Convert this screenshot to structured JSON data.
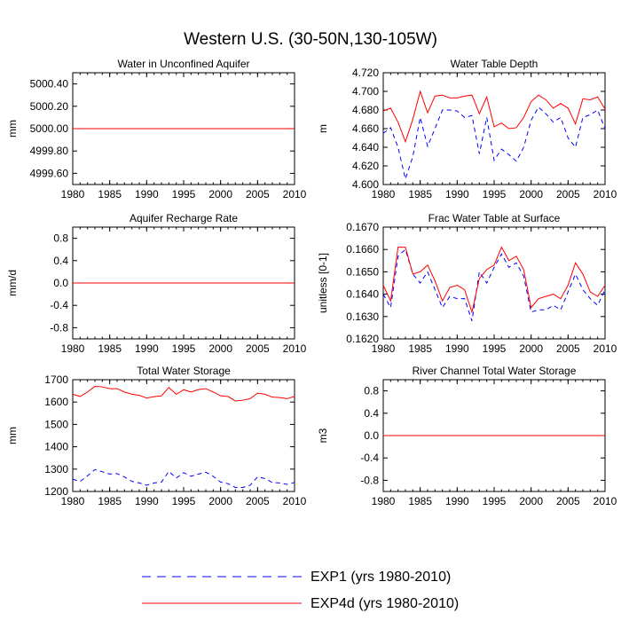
{
  "figure": {
    "title": "Western U.S. (30-50N,130-105W)",
    "legend": [
      {
        "label": "EXP1 (yrs 1980-2010)",
        "color": "#0000ff",
        "style": "dashed"
      },
      {
        "label": "EXP4d (yrs 1980-2010)",
        "color": "#ff0000",
        "style": "solid"
      }
    ]
  },
  "chart_data": [
    {
      "type": "line",
      "title": "Water in Unconfined Aquifer",
      "ylabel": "mm",
      "xlim": [
        1980,
        2010
      ],
      "ylim": [
        4999.5,
        5000.5
      ],
      "xticks": [
        1980,
        1985,
        1990,
        1995,
        2000,
        2005,
        2010
      ],
      "yticks": [
        4999.6,
        4999.8,
        5000.0,
        5000.2,
        5000.4
      ],
      "yticklabels": [
        "4999.60",
        "4999.80",
        "5000.00",
        "5000.20",
        "5000.40"
      ],
      "x": [
        1980,
        2010
      ],
      "series": [
        {
          "name": "EXP1 (yrs 1980-2010)",
          "color": "#0000ff",
          "style": "dashed",
          "values": [
            5000.0,
            5000.0
          ]
        },
        {
          "name": "EXP4d (yrs 1980-2010)",
          "color": "#ff0000",
          "style": "solid",
          "values": [
            5000.0,
            5000.0
          ]
        }
      ]
    },
    {
      "type": "line",
      "title": "Water Table Depth",
      "ylabel": "m",
      "xlim": [
        1980,
        2010
      ],
      "ylim": [
        4.6,
        4.72
      ],
      "xticks": [
        1980,
        1985,
        1990,
        1995,
        2000,
        2005,
        2010
      ],
      "yticks": [
        4.6,
        4.62,
        4.64,
        4.66,
        4.68,
        4.7,
        4.72
      ],
      "yticklabels": [
        "4.600",
        "4.620",
        "4.640",
        "4.660",
        "4.680",
        "4.700",
        "4.720"
      ],
      "x": [
        1980,
        1981,
        1982,
        1983,
        1984,
        1985,
        1986,
        1987,
        1988,
        1989,
        1990,
        1991,
        1992,
        1993,
        1994,
        1995,
        1996,
        1997,
        1998,
        1999,
        2000,
        2001,
        2002,
        2003,
        2004,
        2005,
        2006,
        2007,
        2008,
        2009,
        2010
      ],
      "series": [
        {
          "name": "EXP1 (yrs 1980-2010)",
          "color": "#0000ff",
          "style": "dashed",
          "values": [
            4.655,
            4.661,
            4.64,
            4.606,
            4.63,
            4.672,
            4.641,
            4.66,
            4.68,
            4.68,
            4.679,
            4.672,
            4.674,
            4.633,
            4.672,
            4.626,
            4.638,
            4.632,
            4.625,
            4.64,
            4.669,
            4.683,
            4.676,
            4.667,
            4.672,
            4.65,
            4.64,
            4.672,
            4.675,
            4.68,
            4.66
          ]
        },
        {
          "name": "EXP4d (yrs 1980-2010)",
          "color": "#ff0000",
          "style": "solid",
          "values": [
            4.679,
            4.682,
            4.667,
            4.646,
            4.67,
            4.7,
            4.677,
            4.695,
            4.696,
            4.693,
            4.693,
            4.695,
            4.696,
            4.676,
            4.694,
            4.662,
            4.666,
            4.66,
            4.661,
            4.672,
            4.689,
            4.696,
            4.691,
            4.682,
            4.687,
            4.682,
            4.665,
            4.692,
            4.691,
            4.694,
            4.681
          ]
        }
      ]
    },
    {
      "type": "line",
      "title": "Aquifer Recharge Rate",
      "ylabel": "mm/d",
      "xlim": [
        1980,
        2010
      ],
      "ylim": [
        -1.0,
        1.0
      ],
      "xticks": [
        1980,
        1985,
        1990,
        1995,
        2000,
        2005,
        2010
      ],
      "yticks": [
        -0.8,
        -0.4,
        0.0,
        0.4,
        0.8
      ],
      "yticklabels": [
        "-0.8",
        "-0.4",
        "0.0",
        "0.4",
        "0.8"
      ],
      "x": [
        1980,
        2010
      ],
      "series": [
        {
          "name": "EXP1 (yrs 1980-2010)",
          "color": "#0000ff",
          "style": "dashed",
          "values": [
            0.0,
            0.0
          ]
        },
        {
          "name": "EXP4d (yrs 1980-2010)",
          "color": "#ff0000",
          "style": "solid",
          "values": [
            0.0,
            0.0
          ]
        }
      ]
    },
    {
      "type": "line",
      "title": "Frac Water Table at Surface",
      "ylabel": "unitless [0-1]",
      "xlim": [
        1980,
        2010
      ],
      "ylim": [
        0.162,
        0.167
      ],
      "xticks": [
        1980,
        1985,
        1990,
        1995,
        2000,
        2005,
        2010
      ],
      "yticks": [
        0.162,
        0.163,
        0.164,
        0.165,
        0.166,
        0.167
      ],
      "yticklabels": [
        "0.1620",
        "0.1630",
        "0.1640",
        "0.1650",
        "0.1660",
        "0.1670"
      ],
      "x": [
        1980,
        1981,
        1982,
        1983,
        1984,
        1985,
        1986,
        1987,
        1988,
        1989,
        1990,
        1991,
        1992,
        1993,
        1994,
        1995,
        1996,
        1997,
        1998,
        1999,
        2000,
        2001,
        2002,
        2003,
        2004,
        2005,
        2006,
        2007,
        2008,
        2009,
        2010
      ],
      "series": [
        {
          "name": "EXP1 (yrs 1980-2010)",
          "color": "#0000ff",
          "style": "dashed",
          "values": [
            0.164,
            0.1634,
            0.1657,
            0.166,
            0.1649,
            0.1645,
            0.165,
            0.1642,
            0.1634,
            0.1639,
            0.1638,
            0.1638,
            0.1628,
            0.165,
            0.1645,
            0.1652,
            0.1658,
            0.1652,
            0.1654,
            0.1648,
            0.1632,
            0.1633,
            0.1633,
            0.1635,
            0.1633,
            0.1641,
            0.1649,
            0.1642,
            0.1638,
            0.1635,
            0.1642
          ]
        },
        {
          "name": "EXP4d (yrs 1980-2010)",
          "color": "#ff0000",
          "style": "solid",
          "values": [
            0.1644,
            0.1637,
            0.1661,
            0.1661,
            0.1649,
            0.165,
            0.1653,
            0.1646,
            0.1637,
            0.1643,
            0.1644,
            0.1642,
            0.1632,
            0.1647,
            0.1651,
            0.1653,
            0.1661,
            0.1655,
            0.1657,
            0.1651,
            0.1634,
            0.1638,
            0.1639,
            0.164,
            0.1638,
            0.1644,
            0.1654,
            0.1649,
            0.1641,
            0.1639,
            0.1644
          ]
        }
      ]
    },
    {
      "type": "line",
      "title": "Total Water Storage",
      "ylabel": "mm",
      "xlim": [
        1980,
        2010
      ],
      "ylim": [
        1200,
        1700
      ],
      "xticks": [
        1980,
        1985,
        1990,
        1995,
        2000,
        2005,
        2010
      ],
      "yticks": [
        1200,
        1300,
        1400,
        1500,
        1600,
        1700
      ],
      "yticklabels": [
        "1200",
        "1300",
        "1400",
        "1500",
        "1600",
        "1700"
      ],
      "x": [
        1980,
        1981,
        1982,
        1983,
        1984,
        1985,
        1986,
        1987,
        1988,
        1989,
        1990,
        1991,
        1992,
        1993,
        1994,
        1995,
        1996,
        1997,
        1998,
        1999,
        2000,
        2001,
        2002,
        2003,
        2004,
        2005,
        2006,
        2007,
        2008,
        2009,
        2010
      ],
      "series": [
        {
          "name": "EXP1 (yrs 1980-2010)",
          "color": "#0000ff",
          "style": "dashed",
          "values": [
            1255,
            1245,
            1270,
            1298,
            1288,
            1278,
            1280,
            1265,
            1245,
            1238,
            1228,
            1238,
            1242,
            1290,
            1260,
            1284,
            1268,
            1278,
            1286,
            1268,
            1242,
            1235,
            1218,
            1218,
            1228,
            1265,
            1258,
            1240,
            1238,
            1232,
            1240
          ]
        },
        {
          "name": "EXP4d (yrs 1980-2010)",
          "color": "#ff0000",
          "style": "solid",
          "values": [
            1635,
            1625,
            1645,
            1670,
            1668,
            1660,
            1660,
            1645,
            1635,
            1630,
            1618,
            1624,
            1628,
            1665,
            1635,
            1655,
            1645,
            1656,
            1660,
            1645,
            1628,
            1625,
            1605,
            1608,
            1615,
            1640,
            1635,
            1622,
            1620,
            1615,
            1625
          ]
        }
      ]
    },
    {
      "type": "line",
      "title": "River Channel Total Water Storage",
      "ylabel": "m3",
      "xlim": [
        1980,
        2010
      ],
      "ylim": [
        -1.0,
        1.0
      ],
      "xticks": [
        1980,
        1985,
        1990,
        1995,
        2000,
        2005,
        2010
      ],
      "yticks": [
        -0.8,
        -0.4,
        0.0,
        0.4,
        0.8
      ],
      "yticklabels": [
        "-0.8",
        "-0.4",
        "0.0",
        "0.4",
        "0.8"
      ],
      "x": [
        1980,
        2010
      ],
      "series": [
        {
          "name": "EXP1 (yrs 1980-2010)",
          "color": "#0000ff",
          "style": "dashed",
          "values": [
            0.0,
            0.0
          ]
        },
        {
          "name": "EXP4d (yrs 1980-2010)",
          "color": "#ff0000",
          "style": "solid",
          "values": [
            0.0,
            0.0
          ]
        }
      ]
    }
  ]
}
